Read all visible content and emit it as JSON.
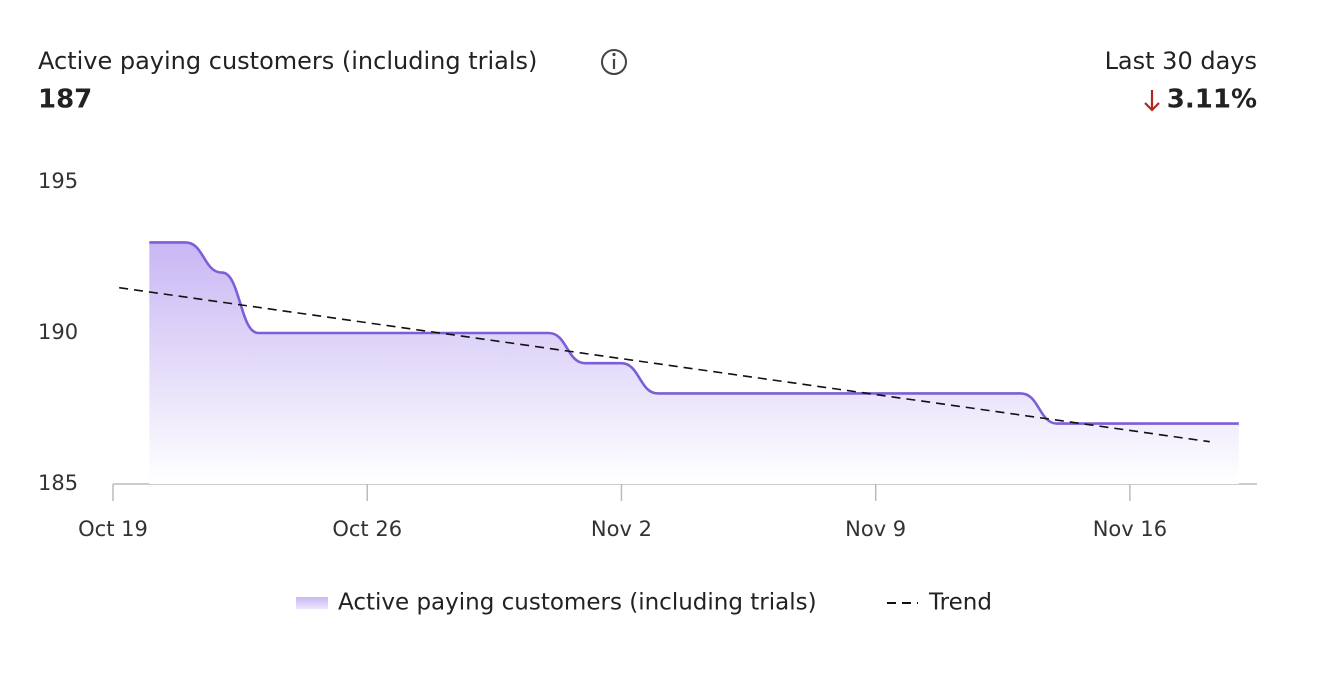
{
  "chart_data": {
    "type": "line",
    "title": "Active paying customers (including trials)",
    "metric": "187",
    "period": "Last 30 days",
    "change": "3.11%",
    "xlim": [
      0,
      31.5
    ],
    "xticks": [
      {
        "value": 0,
        "label": "Oct 19"
      },
      {
        "value": 7,
        "label": "Oct 26"
      },
      {
        "value": 14,
        "label": "Nov 2"
      },
      {
        "value": 21,
        "label": "Nov 9"
      },
      {
        "value": 28,
        "label": "Nov 16"
      }
    ],
    "ylim": [
      185,
      195
    ],
    "yticks": [
      185,
      190,
      195
    ],
    "series": [
      {
        "name": "Active paying customers (including trials)",
        "color": "#7c5fd8",
        "x": [
          1,
          2,
          3,
          4,
          5,
          6,
          7,
          8,
          9,
          10,
          11,
          12,
          13,
          14,
          15,
          16,
          17,
          18,
          19,
          20,
          21,
          22,
          23,
          24,
          25,
          26,
          27,
          28,
          29,
          30,
          31
        ],
        "values": [
          193,
          193,
          192,
          190,
          190,
          190,
          190,
          190,
          190,
          190,
          190,
          190,
          189,
          189,
          188,
          188,
          188,
          188,
          188,
          188,
          188,
          188,
          188,
          188,
          188,
          187,
          187,
          187,
          187,
          187,
          187
        ]
      },
      {
        "name": "Trend",
        "color": "#111111",
        "dashed": true,
        "x": [
          0.17,
          30.2
        ],
        "values": [
          191.5,
          186.4
        ]
      }
    ]
  }
}
